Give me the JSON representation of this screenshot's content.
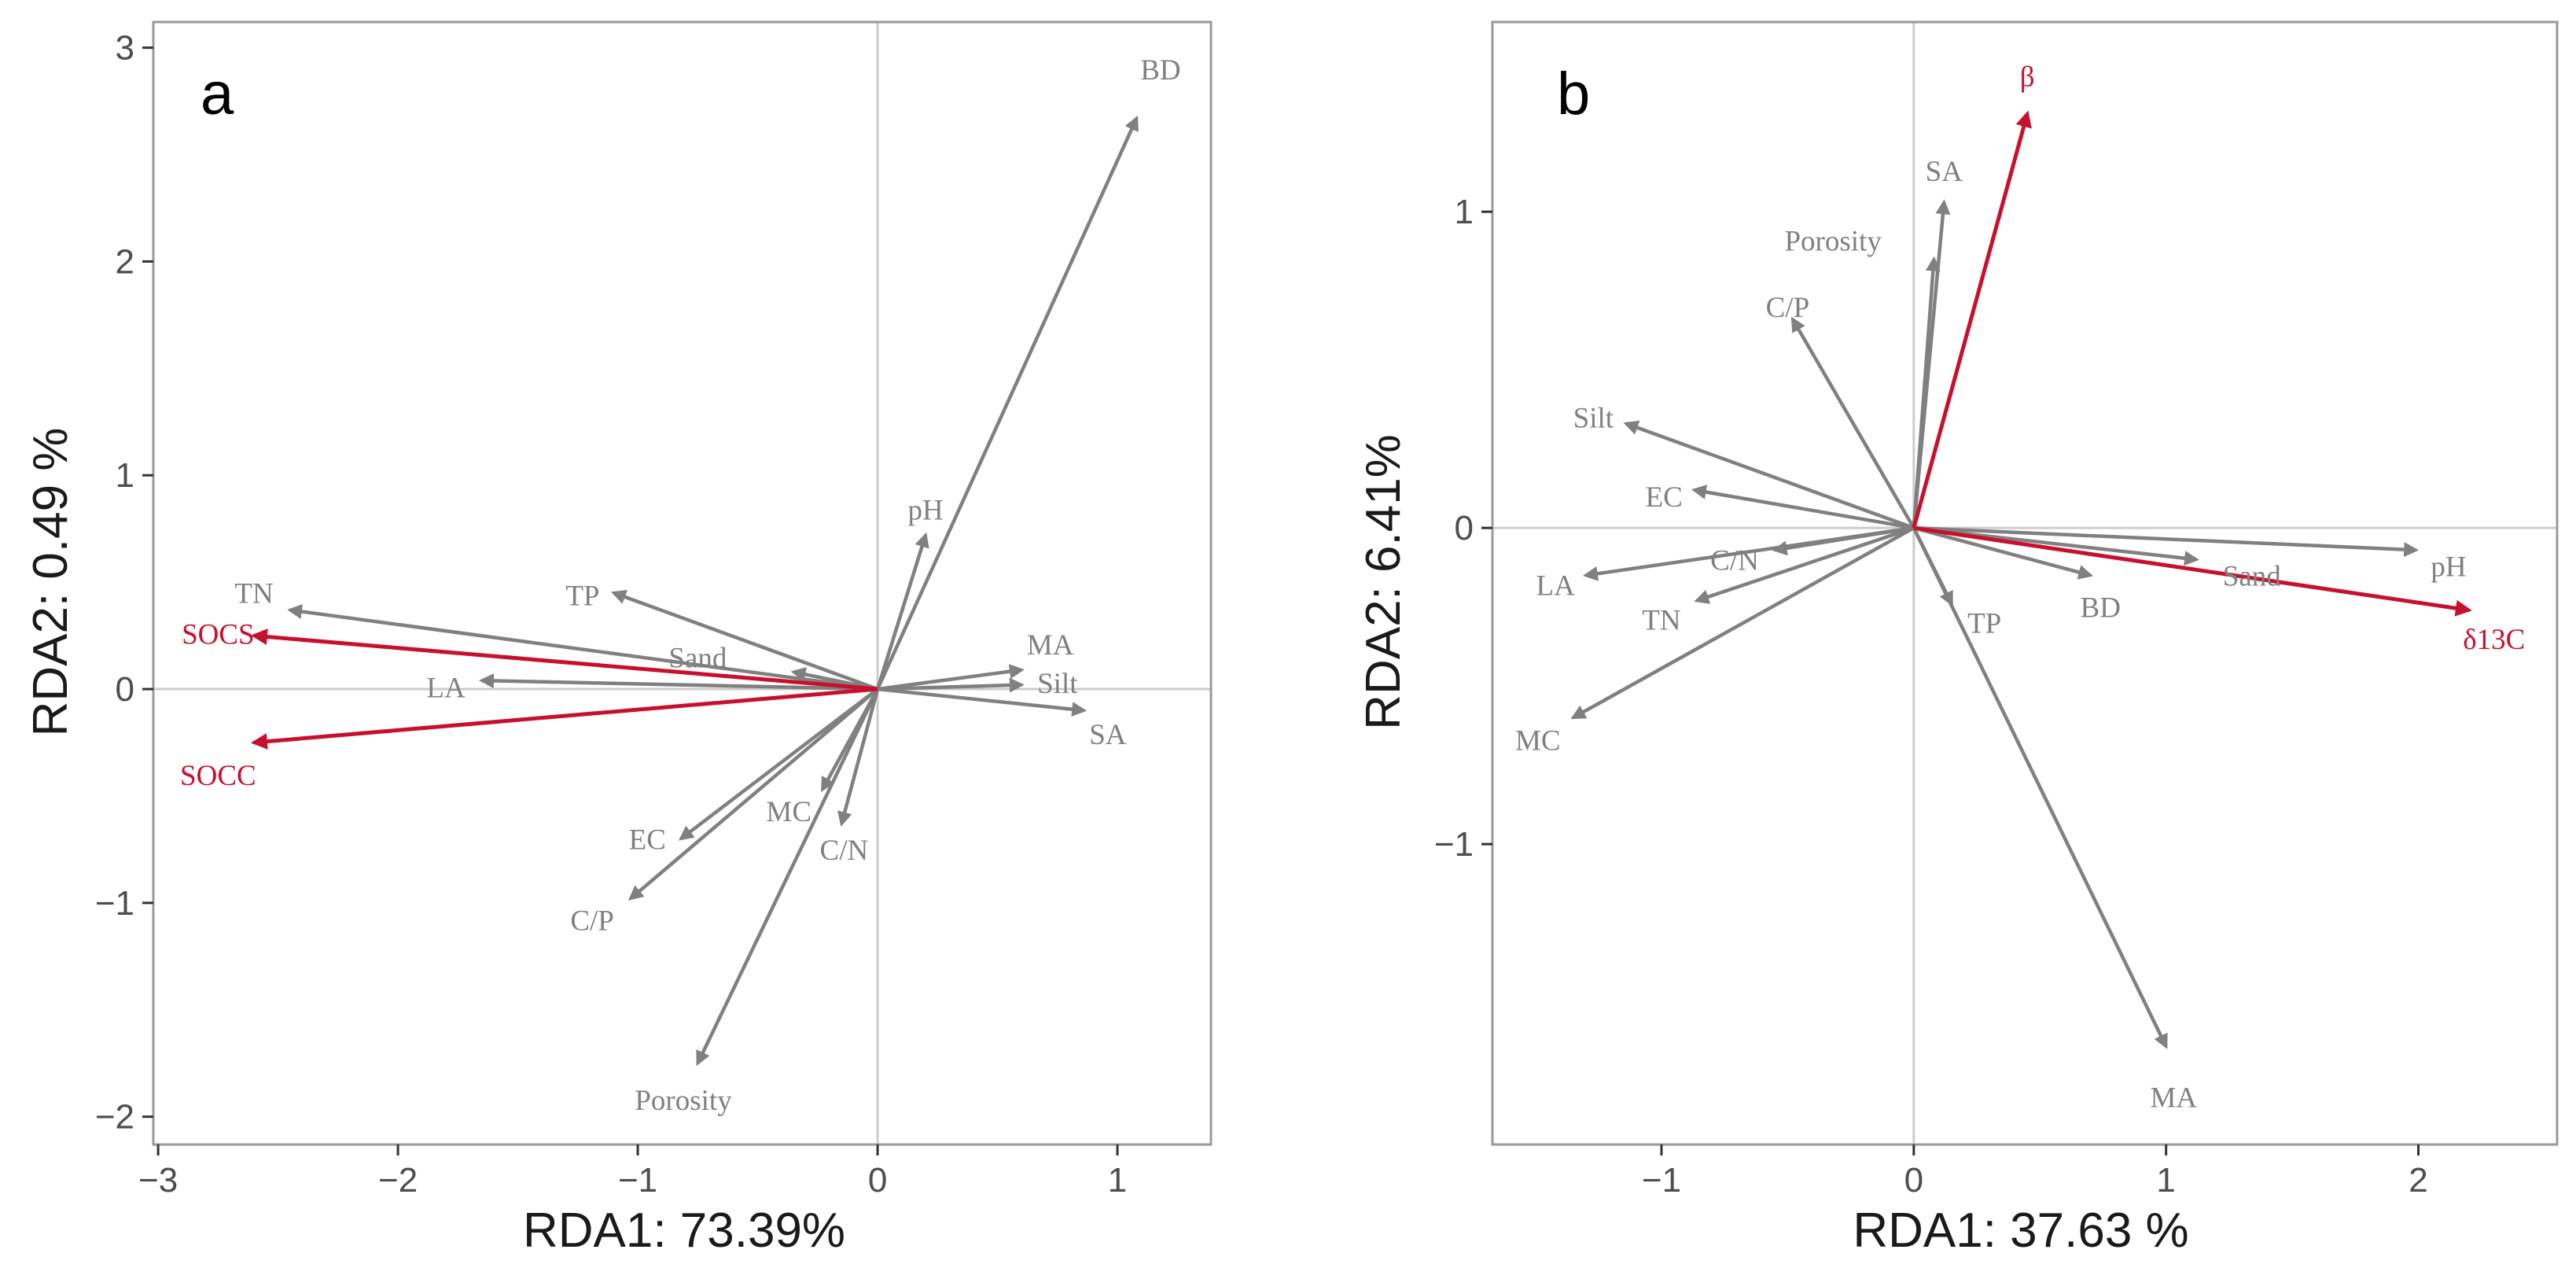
{
  "colors": {
    "grey": "#808080",
    "red": "#c8102e",
    "frame": "#9a9a9a",
    "zero_line": "#cccccc"
  },
  "chart_data": [
    {
      "type": "biplot",
      "panel_label": "a",
      "xlabel": "RDA1: 73.39%",
      "ylabel": "RDA2: 0.49 %",
      "xlim": [
        -3.02,
        1.39
      ],
      "ylim": [
        -2.13,
        3.12
      ],
      "xticks": [
        -3,
        -2,
        -1,
        0,
        1
      ],
      "yticks": [
        -2,
        -1,
        0,
        1,
        2,
        3
      ],
      "xtick_labels": [
        "−3",
        "−2",
        "−1",
        "0",
        "1"
      ],
      "ytick_labels": [
        "−2",
        "−1",
        "0",
        "1",
        "2",
        "3"
      ],
      "vectors": [
        {
          "label": "BD",
          "x": 1.08,
          "y": 2.67,
          "color": "grey",
          "label_x": 1.18,
          "label_y": 2.9
        },
        {
          "label": "pH",
          "x": 0.2,
          "y": 0.72,
          "color": "grey",
          "label_x": 0.2,
          "label_y": 0.84
        },
        {
          "label": "MA",
          "x": 0.6,
          "y": 0.09,
          "color": "grey",
          "label_x": 0.72,
          "label_y": 0.21
        },
        {
          "label": "Silt",
          "x": 0.6,
          "y": 0.02,
          "color": "grey",
          "label_x": 0.75,
          "label_y": 0.03
        },
        {
          "label": "SA",
          "x": 0.86,
          "y": -0.1,
          "color": "grey",
          "label_x": 0.96,
          "label_y": -0.21
        },
        {
          "label": "TN",
          "x": -2.45,
          "y": 0.37,
          "color": "grey",
          "label_x": -2.6,
          "label_y": 0.45
        },
        {
          "label": "TP",
          "x": -1.1,
          "y": 0.45,
          "color": "grey",
          "label_x": -1.23,
          "label_y": 0.44
        },
        {
          "label": "Sand",
          "x": -0.35,
          "y": 0.08,
          "color": "grey",
          "label_x": -0.75,
          "label_y": 0.15
        },
        {
          "label": "LA",
          "x": -1.65,
          "y": 0.04,
          "color": "grey",
          "label_x": -1.8,
          "label_y": 0.01
        },
        {
          "label": "EC",
          "x": -0.82,
          "y": -0.7,
          "color": "grey",
          "label_x": -0.96,
          "label_y": -0.7
        },
        {
          "label": "C/P",
          "x": -1.03,
          "y": -0.98,
          "color": "grey",
          "label_x": -1.19,
          "label_y": -1.08
        },
        {
          "label": "MC",
          "x": -0.23,
          "y": -0.47,
          "color": "grey",
          "label_x": -0.37,
          "label_y": -0.57
        },
        {
          "label": "C/N",
          "x": -0.15,
          "y": -0.63,
          "color": "grey",
          "label_x": -0.14,
          "label_y": -0.75
        },
        {
          "label": "Porosity",
          "x": -0.75,
          "y": -1.75,
          "color": "grey",
          "label_x": -0.81,
          "label_y": -1.92
        },
        {
          "label": "SOCS",
          "x": -2.6,
          "y": 0.25,
          "color": "red",
          "label_x": -2.75,
          "label_y": 0.26
        },
        {
          "label": "SOCC",
          "x": -2.6,
          "y": -0.25,
          "color": "red",
          "label_x": -2.75,
          "label_y": -0.4
        }
      ]
    },
    {
      "type": "biplot",
      "panel_label": "b",
      "xlabel": "RDA1: 37.63 %",
      "ylabel": "RDA2: 6.41%",
      "xlim": [
        -1.67,
        2.55
      ],
      "ylim": [
        -1.95,
        1.6
      ],
      "xticks": [
        -1,
        0,
        1,
        2
      ],
      "yticks": [
        -1,
        0,
        1
      ],
      "xtick_labels": [
        "−1",
        "0",
        "1",
        "2"
      ],
      "ytick_labels": [
        "−1",
        "0",
        "1"
      ],
      "vectors": [
        {
          "label": "SA",
          "x": 0.12,
          "y": 1.03,
          "color": "grey",
          "label_x": 0.12,
          "label_y": 1.13
        },
        {
          "label": "Porosity",
          "x": 0.08,
          "y": 0.85,
          "color": "grey",
          "label_x": -0.32,
          "label_y": 0.91
        },
        {
          "label": "C/P",
          "x": -0.48,
          "y": 0.66,
          "color": "grey",
          "label_x": -0.5,
          "label_y": 0.7
        },
        {
          "label": "Silt",
          "x": -1.14,
          "y": 0.33,
          "color": "grey",
          "label_x": -1.27,
          "label_y": 0.35
        },
        {
          "label": "EC",
          "x": -0.87,
          "y": 0.12,
          "color": "grey",
          "label_x": -0.99,
          "label_y": 0.1
        },
        {
          "label": "C/N",
          "x": -0.55,
          "y": -0.07,
          "color": "grey",
          "label_x": -0.71,
          "label_y": -0.1
        },
        {
          "label": "LA",
          "x": -1.3,
          "y": -0.15,
          "color": "grey",
          "label_x": -1.42,
          "label_y": -0.18
        },
        {
          "label": "TN",
          "x": -0.86,
          "y": -0.23,
          "color": "grey",
          "label_x": -1.0,
          "label_y": -0.29
        },
        {
          "label": "MC",
          "x": -1.35,
          "y": -0.6,
          "color": "grey",
          "label_x": -1.49,
          "label_y": -0.67
        },
        {
          "label": "TP",
          "x": 0.15,
          "y": -0.24,
          "color": "grey",
          "label_x": 0.28,
          "label_y": -0.3
        },
        {
          "label": "BD",
          "x": 0.7,
          "y": -0.15,
          "color": "grey",
          "label_x": 0.74,
          "label_y": -0.25
        },
        {
          "label": "Sand",
          "x": 1.12,
          "y": -0.1,
          "color": "grey",
          "label_x": 1.34,
          "label_y": -0.15
        },
        {
          "label": "pH",
          "x": 1.99,
          "y": -0.07,
          "color": "grey",
          "label_x": 2.12,
          "label_y": -0.12
        },
        {
          "label": "MA",
          "x": 1.0,
          "y": -1.64,
          "color": "grey",
          "label_x": 1.03,
          "label_y": -1.8
        },
        {
          "label": "β",
          "x": 0.45,
          "y": 1.31,
          "color": "red",
          "label_x": 0.45,
          "label_y": 1.43
        },
        {
          "label": "δ13C",
          "x": 2.2,
          "y": -0.26,
          "color": "red",
          "label_x": 2.3,
          "label_y": -0.35
        }
      ]
    }
  ]
}
